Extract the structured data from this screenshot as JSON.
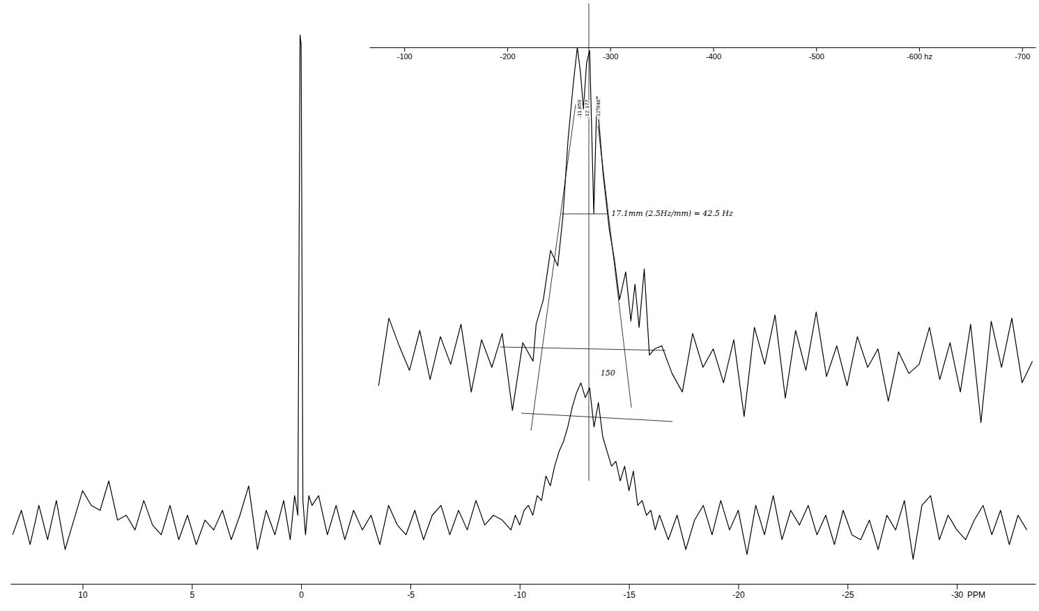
{
  "chart_data": [
    {
      "type": "line",
      "color": "#000000",
      "xlabel": "PPM",
      "tick_labels": "x",
      "xlim": [
        13.3,
        -33.6
      ],
      "xticks": [
        10,
        5,
        0,
        -5,
        -10,
        -15,
        -20,
        -25,
        -30
      ],
      "ylim": [
        -12,
        105
      ],
      "x": [
        13.2,
        12.8,
        12.4,
        12.0,
        11.6,
        11.2,
        10.8,
        10.4,
        10.0,
        9.6,
        9.2,
        8.8,
        8.4,
        8.0,
        7.6,
        7.2,
        6.8,
        6.4,
        6.0,
        5.6,
        5.2,
        4.8,
        4.4,
        4.0,
        3.6,
        3.2,
        2.8,
        2.4,
        2.0,
        1.6,
        1.2,
        0.8,
        0.5,
        0.3,
        0.15,
        0.05,
        0.0,
        -0.08,
        -0.2,
        -0.35,
        -0.5,
        -0.8,
        -1.2,
        -1.6,
        -2.0,
        -2.4,
        -2.8,
        -3.2,
        -3.6,
        -4.0,
        -4.4,
        -4.8,
        -5.2,
        -5.6,
        -6.0,
        -6.4,
        -6.8,
        -7.2,
        -7.6,
        -8.0,
        -8.4,
        -8.8,
        -9.2,
        -9.6,
        -9.8,
        -10.0,
        -10.2,
        -10.4,
        -10.6,
        -10.8,
        -11.0,
        -11.2,
        -11.4,
        -11.6,
        -11.8,
        -12.0,
        -12.2,
        -12.4,
        -12.6,
        -12.8,
        -13.0,
        -13.2,
        -13.4,
        -13.6,
        -13.8,
        -14.0,
        -14.2,
        -14.4,
        -14.6,
        -14.8,
        -15.0,
        -15.2,
        -15.4,
        -15.6,
        -15.8,
        -16.0,
        -16.2,
        -16.4,
        -16.8,
        -17.2,
        -17.6,
        -18.0,
        -18.4,
        -18.8,
        -19.2,
        -19.6,
        -20.0,
        -20.4,
        -20.8,
        -21.2,
        -21.6,
        -22.0,
        -22.4,
        -22.8,
        -23.2,
        -23.6,
        -24.0,
        -24.4,
        -24.8,
        -25.2,
        -25.6,
        -26.0,
        -26.4,
        -26.8,
        -27.2,
        -27.6,
        -28.0,
        -28.4,
        -28.8,
        -29.2,
        -29.6,
        -30.0,
        -30.4,
        -30.8,
        -31.2,
        -31.6,
        -32.0,
        -32.4,
        -32.8,
        -33.2
      ],
      "values": [
        -2,
        3,
        -4,
        4,
        -3,
        5,
        -5,
        1,
        7,
        4,
        3,
        9,
        1,
        2,
        -1,
        5,
        0,
        -2,
        4,
        -3,
        2,
        -4,
        1,
        -1,
        3,
        -3,
        2,
        8,
        -5,
        3,
        -2,
        5,
        -3,
        6,
        2,
        100,
        98,
        5,
        -2,
        6,
        4,
        6,
        -2,
        4,
        -3,
        3,
        -1,
        2,
        -4,
        4,
        0,
        -2,
        3,
        -3,
        2,
        4,
        -2,
        3,
        -1,
        5,
        0,
        2,
        1,
        -1,
        2,
        0,
        3,
        4,
        2,
        6,
        5,
        10,
        8,
        12,
        15,
        17,
        20,
        24,
        27,
        29,
        26,
        28,
        20,
        25,
        18,
        15,
        12,
        13,
        9,
        12,
        7,
        11,
        4,
        5,
        2,
        3,
        -1,
        2,
        -3,
        2,
        -5,
        1,
        4,
        -2,
        5,
        -1,
        3,
        -6,
        4,
        -2,
        6,
        -3,
        3,
        0,
        4,
        -2,
        2,
        -4,
        3,
        -2,
        -3,
        1,
        -5,
        2,
        -1,
        5,
        -7,
        4,
        6,
        -3,
        2,
        -1,
        -3,
        1,
        4,
        -2,
        3,
        -4,
        2,
        -1
      ],
      "annotations": [
        {
          "text": "150",
          "x": -13.7,
          "y": 31
        }
      ]
    },
    {
      "type": "line",
      "color": "#000000",
      "tick_labels": "x",
      "xlim": [
        -66,
        -713
      ],
      "xticks": [
        -100,
        -200,
        -300,
        -400,
        -500,
        {
          "value": -600,
          "label": "-600 hz"
        },
        -700
      ],
      "ylim": [
        -25,
        100
      ],
      "x": [
        -75,
        -85,
        -95,
        -105,
        -115,
        -125,
        -135,
        -145,
        -155,
        -165,
        -175,
        -185,
        -195,
        -205,
        -215,
        -225,
        -228,
        -235,
        -242,
        -249,
        -254,
        -259,
        -264,
        -268,
        -271,
        -274,
        -277,
        -280,
        -284,
        -287,
        -293,
        -299,
        -304,
        -309,
        -315,
        -320,
        -324,
        -328,
        -333,
        -338,
        -343,
        -350,
        -360,
        -370,
        -380,
        -390,
        -400,
        -410,
        -420,
        -430,
        -440,
        -450,
        -460,
        -470,
        -480,
        -490,
        -500,
        -510,
        -520,
        -530,
        -540,
        -550,
        -560,
        -570,
        -580,
        -590,
        -600,
        -610,
        -620,
        -630,
        -640,
        -650,
        -660,
        -670,
        -680,
        -690,
        -700,
        -710
      ],
      "values": [
        -10,
        12,
        3,
        -5,
        8,
        -8,
        6,
        -3,
        10,
        -12,
        5,
        -4,
        7,
        -18,
        4,
        -2,
        10,
        18,
        34,
        29,
        45,
        70,
        88,
        100,
        92,
        80,
        95,
        99,
        46,
        84,
        59,
        41,
        31,
        18,
        27,
        11,
        23,
        9,
        28,
        0,
        2,
        3,
        -6,
        -12,
        7,
        -4,
        2,
        -9,
        5,
        -20,
        9,
        -3,
        13,
        -14,
        8,
        -5,
        14,
        -7,
        3,
        -10,
        6,
        -4,
        2,
        -15,
        1,
        -6,
        -3,
        9,
        -8,
        4,
        -12,
        10,
        -22,
        11,
        -4,
        12,
        -9,
        -2
      ],
      "peak_labels": [
        {
          "text": "-11.859",
          "x": -270,
          "y": 80
        },
        {
          "text": "-12.177",
          "x": -277,
          "y": 80
        },
        {
          "text": "-12.648",
          "x": -288,
          "y": 80
        }
      ],
      "annotations": [
        {
          "text": "17.1mm (2.5Hz/mm) = 42.5 Hz",
          "x": -301,
          "y": 46
        }
      ]
    }
  ]
}
